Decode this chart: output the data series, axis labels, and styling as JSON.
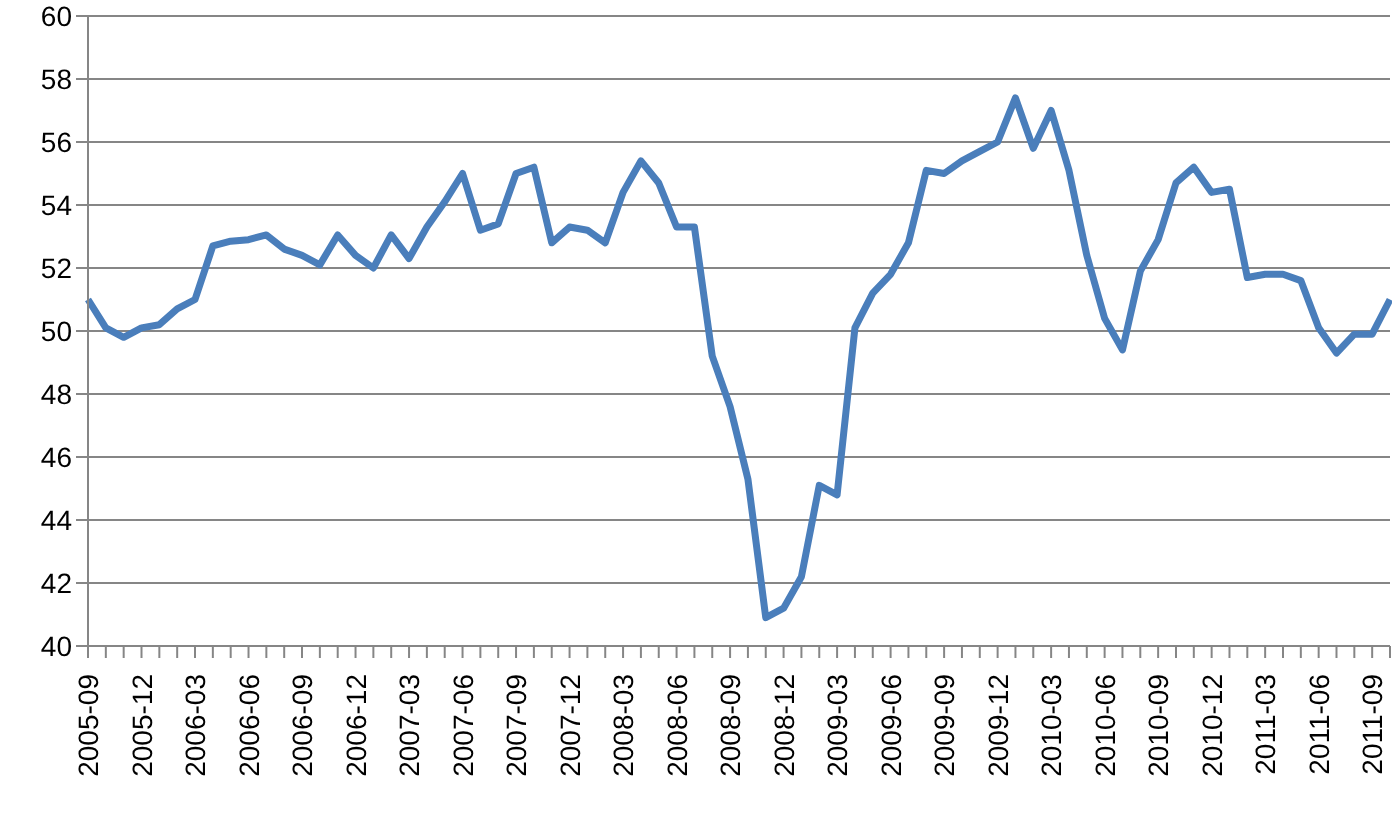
{
  "chart_data": {
    "type": "line",
    "categories": [
      "2005-09",
      null,
      null,
      "2005-12",
      null,
      null,
      "2006-03",
      null,
      null,
      "2006-06",
      null,
      null,
      "2006-09",
      null,
      null,
      "2006-12",
      null,
      null,
      "2007-03",
      null,
      null,
      "2007-06",
      null,
      null,
      "2007-09",
      null,
      null,
      "2007-12",
      null,
      null,
      "2008-03",
      null,
      null,
      "2008-06",
      null,
      null,
      "2008-09",
      null,
      null,
      "2008-12",
      null,
      null,
      "2009-03",
      null,
      null,
      "2009-06",
      null,
      null,
      "2009-09",
      null,
      null,
      "2009-12",
      null,
      null,
      "2010-03",
      null,
      null,
      "2010-06",
      null,
      null,
      "2010-09",
      null,
      null,
      "2010-12",
      null,
      null,
      "2011-03",
      null,
      null,
      "2011-06",
      null,
      null,
      "2011-09",
      null
    ],
    "series": [
      {
        "color": "#4a7ebb",
        "values": [
          51.0,
          50.1,
          49.8,
          50.1,
          50.2,
          50.7,
          51.0,
          52.7,
          52.85,
          52.9,
          53.05,
          52.6,
          52.4,
          52.1,
          53.05,
          52.4,
          52.0,
          53.05,
          52.3,
          53.3,
          54.1,
          55.0,
          53.2,
          53.4,
          55.0,
          55.2,
          52.8,
          53.3,
          53.2,
          52.8,
          54.4,
          55.4,
          54.7,
          53.3,
          53.3,
          49.2,
          47.6,
          45.3,
          40.9,
          41.2,
          42.2,
          45.1,
          44.8,
          50.1,
          51.2,
          51.8,
          52.8,
          55.1,
          55.0,
          55.4,
          55.7,
          56.0,
          57.4,
          55.8,
          57.0,
          55.1,
          52.4,
          50.4,
          49.4,
          51.9,
          52.9,
          54.7,
          55.2,
          54.4,
          54.5,
          51.7,
          51.8,
          51.8,
          51.6,
          50.1,
          49.3,
          49.9,
          49.9,
          51.0
        ]
      }
    ],
    "ylim": [
      40,
      60
    ],
    "yticks": [
      40,
      42,
      44,
      46,
      48,
      50,
      52,
      54,
      56,
      58,
      60
    ],
    "grid": "y",
    "legend": false,
    "marker": "none",
    "line_style": "solid"
  }
}
